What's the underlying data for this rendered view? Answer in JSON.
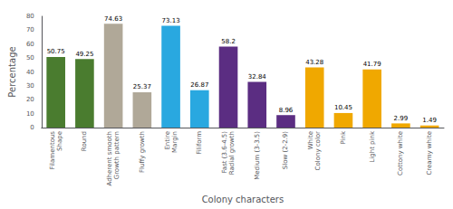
{
  "chart_data": {
    "type": "bar",
    "categories": [
      "Filamentous\nShape",
      "Round",
      "Adherent smooth\nGrowth pattern",
      "Fluffy growth",
      "Entire\nMargin",
      "Filiform",
      "Fast (3.6-4.5)\nRadial growth",
      "Medium (3-3.5)",
      "Slow (2-2.9)",
      "White\nColony color",
      "Pink",
      "Light pink",
      "Cottony white",
      "Creamy white"
    ],
    "values": [
      50.75,
      49.25,
      74.63,
      25.37,
      73.13,
      26.87,
      58.2,
      32.84,
      8.96,
      43.28,
      10.45,
      41.79,
      2.99,
      1.49
    ],
    "colors": [
      "#4a7c2f",
      "#4a7c2f",
      "#b0a898",
      "#b0a898",
      "#29a8e0",
      "#29a8e0",
      "#5b2d82",
      "#5b2d82",
      "#5b2d82",
      "#f0a800",
      "#f0a800",
      "#f0a800",
      "#f0a800",
      "#f0a800"
    ],
    "xlabel": "Colony characters",
    "ylabel": "Percentage",
    "ylim": [
      0,
      80
    ],
    "yticks": [
      0,
      10,
      20,
      30,
      40,
      50,
      60,
      70,
      80
    ],
    "data_labels": true,
    "grid": false
  }
}
